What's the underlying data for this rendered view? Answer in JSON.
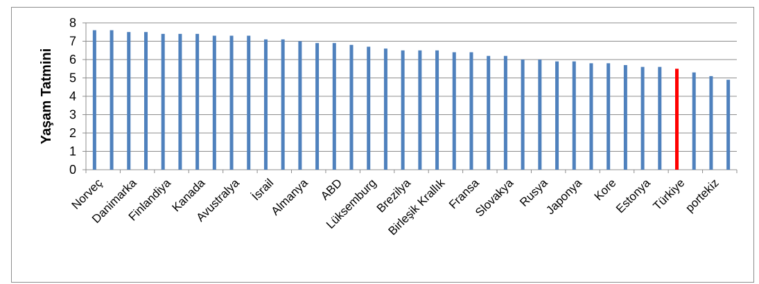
{
  "chart_data": {
    "type": "bar",
    "title": "",
    "xlabel": "",
    "ylabel": "Yaşam Tatmini",
    "ylim": [
      0,
      8
    ],
    "yticks": [
      0,
      1,
      2,
      3,
      4,
      5,
      6,
      7,
      8
    ],
    "grid": true,
    "legend": "none",
    "bar_color": "#4f81bd",
    "highlight_color": "#ff0000",
    "highlight_index": 34,
    "categories": [
      "Norveç",
      "",
      "Danimarka",
      "",
      "Finlandiya",
      "",
      "Kanada",
      "",
      "Avustralya",
      "",
      "İsrail",
      "",
      "Almanya",
      "",
      "ABD",
      "",
      "Lüksemburg",
      "",
      "Brezilya",
      "",
      "Birleşik Krallık",
      "",
      "Fransa",
      "",
      "Slovakya",
      "",
      "Rusya",
      "",
      "Japonya",
      "",
      "Kore",
      "",
      "Estonya",
      "",
      "Türkiye",
      "",
      "portekiz",
      ""
    ],
    "values": [
      7.6,
      7.6,
      7.5,
      7.5,
      7.4,
      7.4,
      7.4,
      7.3,
      7.3,
      7.3,
      7.1,
      7.1,
      7.0,
      6.9,
      6.9,
      6.8,
      6.7,
      6.6,
      6.5,
      6.5,
      6.5,
      6.4,
      6.4,
      6.2,
      6.2,
      6.0,
      6.0,
      5.9,
      5.9,
      5.8,
      5.8,
      5.7,
      5.6,
      5.6,
      5.5,
      5.3,
      5.1,
      4.9
    ]
  }
}
